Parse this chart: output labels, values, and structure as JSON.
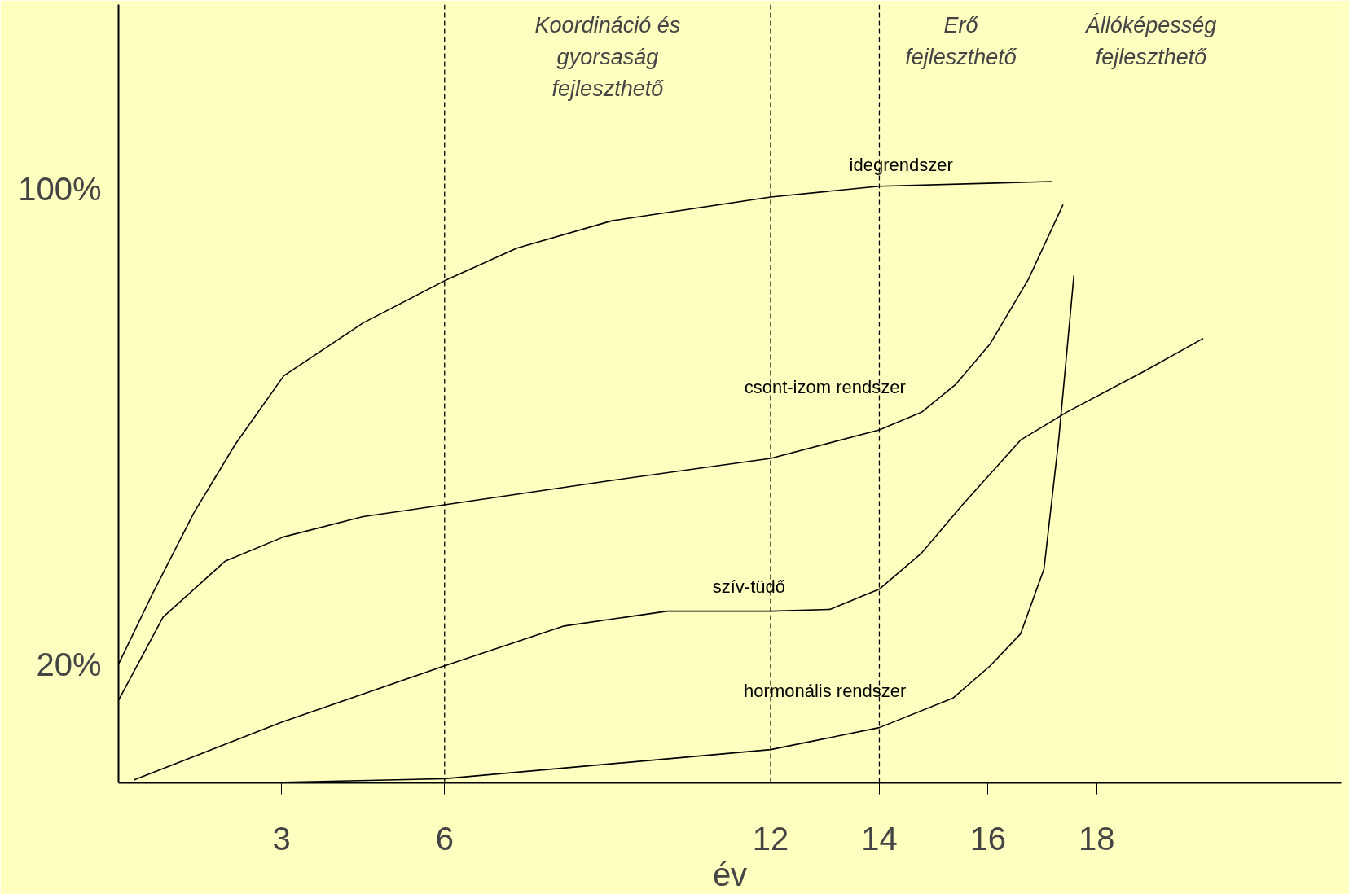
{
  "chart_data": {
    "type": "line",
    "xlabel": "év",
    "series": [
      {
        "name": "idegrendszer",
        "color": "#000000",
        "x": [
          0,
          0.63,
          1.39,
          2.15,
          3.04,
          4.5,
          6,
          7.33,
          9.08,
          12,
          14,
          16,
          17.17
        ],
        "values": [
          20,
          31.9,
          45.5,
          57,
          68.5,
          77.4,
          84.5,
          90,
          94.6,
          98.6,
          100.4,
          100.9,
          101.2
        ]
      },
      {
        "name": "csont-izom rendszer",
        "color": "#000000",
        "x": [
          0,
          0.82,
          1.96,
          3.04,
          4.5,
          6,
          9.08,
          12,
          14,
          14.78,
          15.41,
          16.04,
          16.74,
          17.38
        ],
        "values": [
          13.9,
          27.9,
          37.3,
          41.4,
          44.8,
          46.8,
          50.9,
          54.6,
          59.4,
          62.4,
          67.1,
          73.9,
          84.7,
          97.3
        ]
      },
      {
        "name": "szív-tüdő",
        "color": "#000000",
        "x": [
          0.29,
          3,
          6,
          8.2,
          10.1,
          12,
          13.09,
          14,
          14.78,
          15.53,
          16.6,
          17.45,
          18.86,
          19.96
        ],
        "values": [
          0.5,
          10.2,
          19.7,
          26.4,
          28.9,
          28.9,
          29.2,
          32.6,
          38.7,
          46.8,
          57.7,
          62.4,
          69.2,
          74.8
        ]
      },
      {
        "name": "hormonális rendszer",
        "color": "#000000",
        "x": [
          2.52,
          6,
          12,
          14,
          15.36,
          16.04,
          16.6,
          17.03,
          17.3,
          17.58
        ],
        "values": [
          0,
          0.7,
          5.6,
          9.3,
          14.3,
          19.7,
          25.1,
          36,
          57.7,
          85.4
        ]
      }
    ],
    "xlim": [
      0,
      22.5
    ],
    "ylim": [
      0,
      131
    ],
    "xticks": [
      3,
      6,
      12,
      14,
      16,
      18
    ],
    "yticks": [
      {
        "value": 20,
        "label": "20%"
      },
      {
        "value": 100,
        "label": "100%"
      }
    ],
    "ref_lines": [
      {
        "axis": "x",
        "value": 6,
        "line_style": "dashed"
      },
      {
        "axis": "x",
        "value": 12,
        "line_style": "dashed"
      },
      {
        "axis": "x",
        "value": 14,
        "line_style": "dashed"
      }
    ],
    "annotations": [
      "Koordináció és\ngyorsaság\nfejleszthető",
      "Erő\nfejleszthető",
      "Állóképesség\nfejleszthető"
    ],
    "grid": false,
    "marker": "none",
    "line_style": "solid"
  }
}
